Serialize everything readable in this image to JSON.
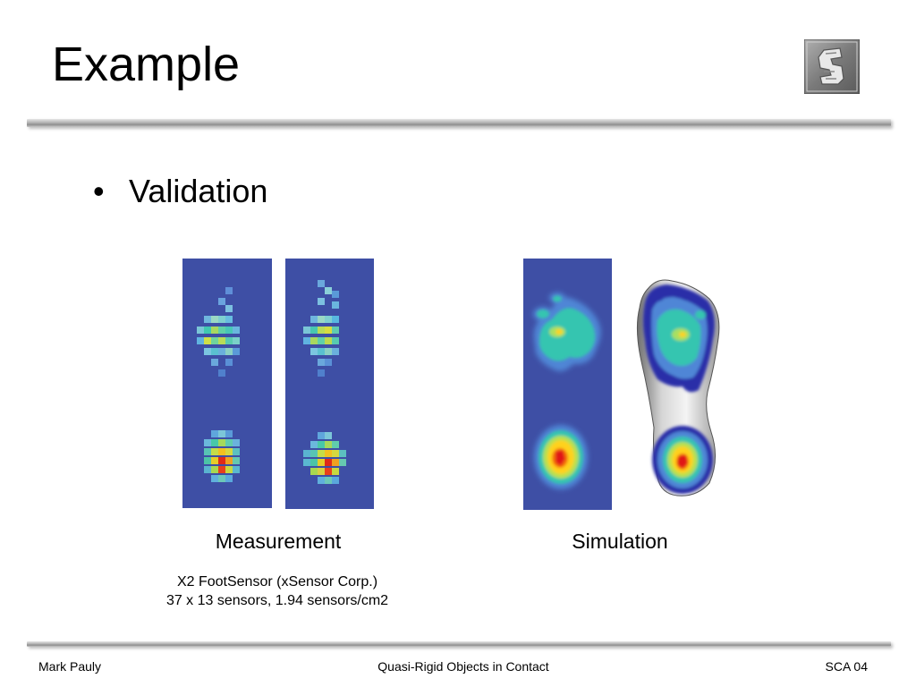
{
  "slide": {
    "title": "Example",
    "bullet": "Validation",
    "captions": {
      "measurement": "Measurement",
      "simulation": "Simulation"
    },
    "sensor_note": {
      "line1": "X2 FootSensor (xSensor Corp.)",
      "line2": "37 x 13 sensors, 1.94 sensors/cm2"
    }
  },
  "footer": {
    "author": "Mark Pauly",
    "talk_title": "Quasi-Rigid Objects in Contact",
    "venue": "SCA 04"
  },
  "colors": {
    "panel_background": "#3e4fa5",
    "heatmap_low": "#4f86d6",
    "heatmap_mid": "#35c5b0",
    "heatmap_high": "#ffd21e",
    "heatmap_peak": "#e01515"
  }
}
